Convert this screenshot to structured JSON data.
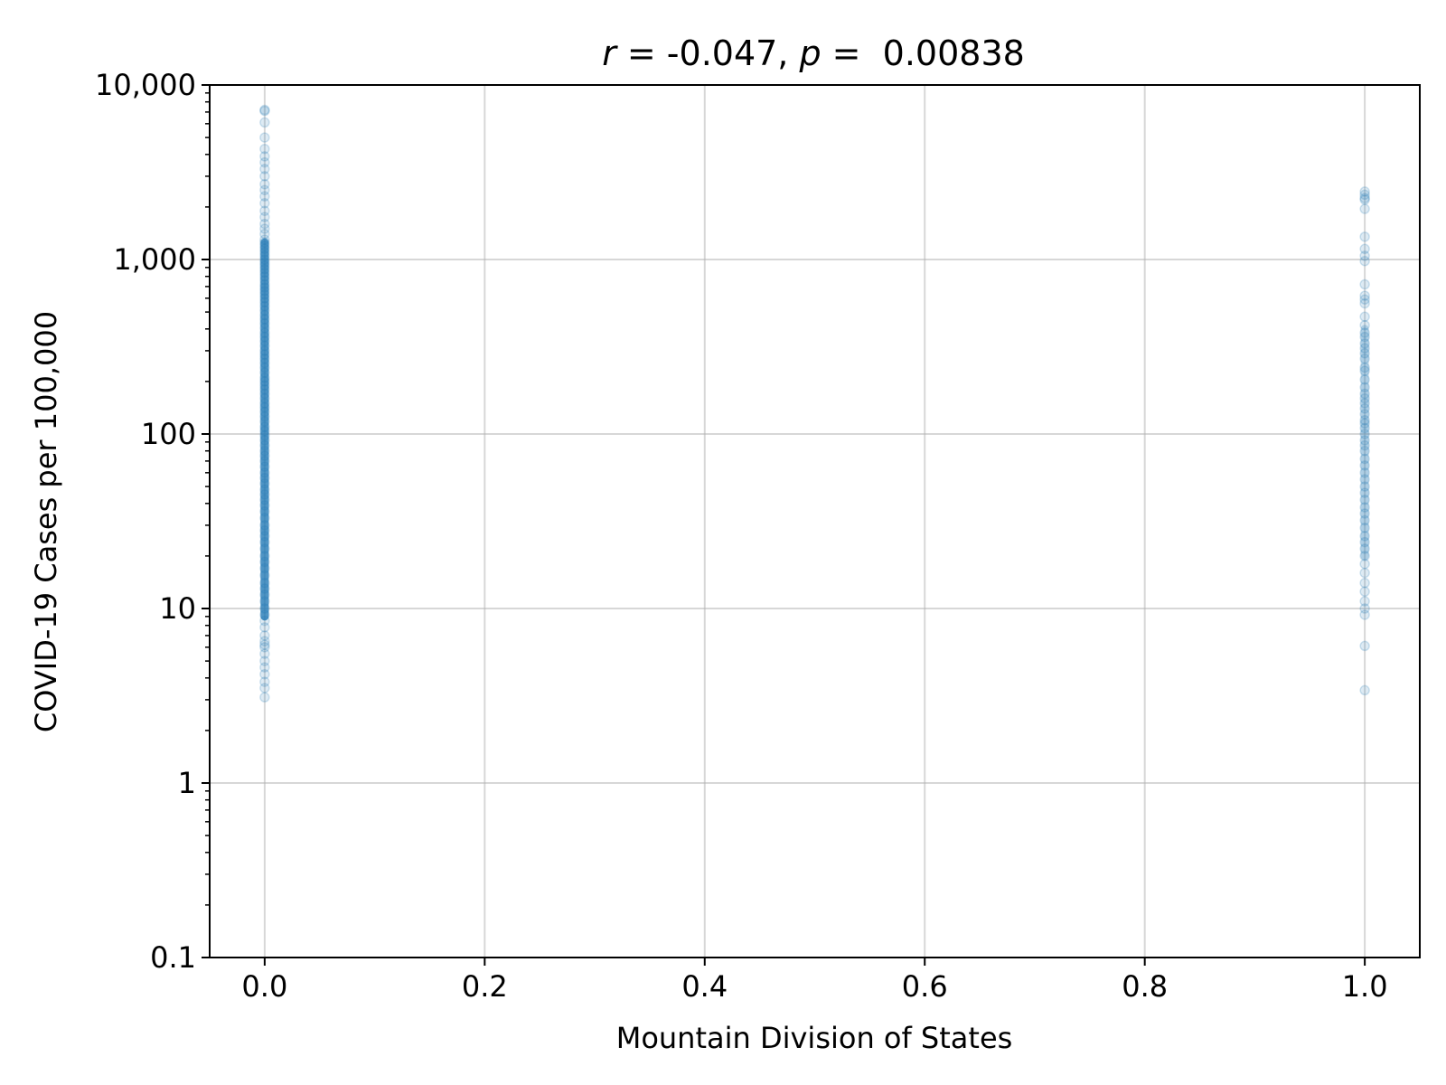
{
  "chart_data": {
    "type": "scatter",
    "title": {
      "r_symbol": "r",
      "r_text": " = -0.047, ",
      "p_symbol": "p",
      "p_text": " =  0.00838"
    },
    "xlabel": "Mountain Division of States",
    "ylabel": "COVID-19 Cases per 100,000",
    "xlim": [
      -0.05,
      1.05
    ],
    "ylim": [
      0.1,
      10000
    ],
    "yscale": "log",
    "grid": true,
    "x_ticks": [
      {
        "value": 0.0,
        "label": "0.0"
      },
      {
        "value": 0.2,
        "label": "0.2"
      },
      {
        "value": 0.4,
        "label": "0.4"
      },
      {
        "value": 0.6,
        "label": "0.6"
      },
      {
        "value": 0.8,
        "label": "0.8"
      },
      {
        "value": 1.0,
        "label": "1.0"
      }
    ],
    "y_ticks": [
      {
        "value": 0.1,
        "label": "0.1"
      },
      {
        "value": 1,
        "label": "1"
      },
      {
        "value": 10,
        "label": "10"
      },
      {
        "value": 100,
        "label": "100"
      },
      {
        "value": 1000,
        "label": "1,000"
      },
      {
        "value": 10000,
        "label": "10,000"
      }
    ],
    "point_color": "#1f77b4",
    "point_alpha": 0.15,
    "series": [
      {
        "x": 0,
        "values": [
          7200,
          7100,
          6100,
          5000,
          4300,
          3900,
          3600,
          3300,
          3000,
          2700,
          2500,
          2300,
          2100,
          1900,
          1750,
          1600,
          1500,
          1400,
          1300,
          1250,
          1200,
          1150,
          1100,
          1050,
          1000,
          960,
          920,
          880,
          840,
          800,
          760,
          720,
          690,
          660,
          630,
          600,
          570,
          540,
          510,
          480,
          455,
          430,
          405,
          380,
          360,
          340,
          320,
          300,
          285,
          270,
          255,
          240,
          225,
          210,
          200,
          190,
          180,
          170,
          160,
          150,
          142,
          134,
          126,
          118,
          110,
          104,
          98,
          92,
          86,
          80,
          75,
          70,
          65,
          60,
          56,
          52,
          48,
          45,
          42,
          39,
          36,
          33,
          30,
          28,
          26,
          24,
          22,
          20,
          18.5,
          17,
          15.5,
          14,
          13,
          12,
          11,
          10,
          9.2,
          8.5,
          7.8,
          7,
          6.5,
          6.2,
          6,
          5.5,
          5,
          4.6,
          4.2,
          3.8,
          3.5,
          3.1
        ]
      },
      {
        "x": 1,
        "values": [
          2450,
          2350,
          2250,
          2200,
          1950,
          1350,
          1150,
          1050,
          980,
          720,
          620,
          590,
          560,
          470,
          420,
          380,
          360,
          330,
          310,
          290,
          270,
          240,
          230,
          205,
          185,
          170,
          160,
          150,
          140,
          130,
          120,
          115,
          108,
          100,
          92,
          86,
          80,
          72,
          66,
          60,
          55,
          50,
          46,
          42,
          38,
          35,
          32,
          29,
          26,
          24,
          22,
          20,
          18,
          16,
          14,
          12.5,
          11,
          10,
          9.2,
          6.1,
          3.4
        ]
      }
    ]
  }
}
